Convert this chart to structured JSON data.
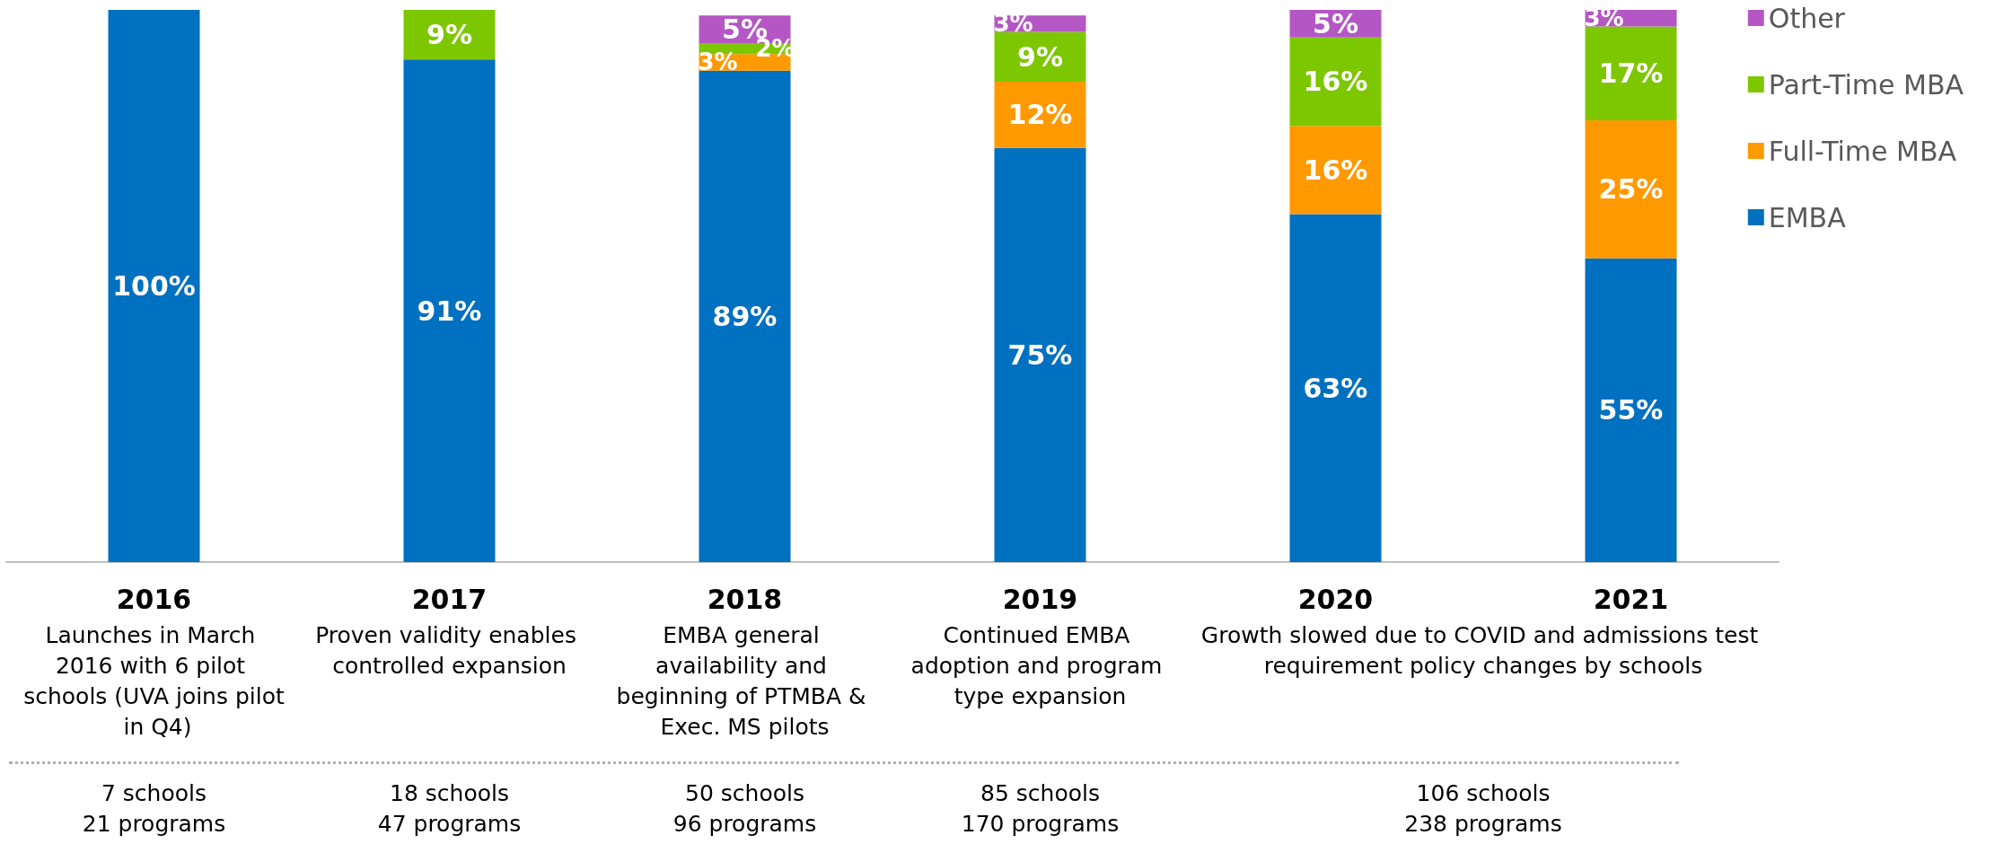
{
  "chart_data": {
    "type": "bar",
    "stacked": true,
    "categories": [
      "2016",
      "2017",
      "2018",
      "2019",
      "2020",
      "2021"
    ],
    "ylim": [
      0,
      100
    ],
    "legend": "top right",
    "grid": false,
    "series": [
      {
        "name": "EMBA",
        "color": "#0070c0",
        "values": [
          100,
          91,
          89,
          75,
          63,
          55
        ],
        "value_labels": [
          "100%",
          "91%",
          "89%",
          "75%",
          "63%",
          "55%"
        ]
      },
      {
        "name": "Full-Time MBA",
        "color": "#ff9900",
        "values": [
          null,
          null,
          3,
          12,
          16,
          25
        ],
        "value_labels": [
          null,
          null,
          "3%",
          "12%",
          "16%",
          "25%"
        ]
      },
      {
        "name": "Part-Time MBA",
        "color": "#7dc700",
        "values": [
          null,
          9,
          2,
          9,
          16,
          17
        ],
        "value_labels": [
          null,
          "9%",
          "2%",
          "9%",
          "16%",
          "17%"
        ]
      },
      {
        "name": "Other",
        "color": "#b556c5",
        "values": [
          null,
          null,
          5,
          3,
          5,
          3
        ],
        "value_labels": [
          null,
          null,
          "5%",
          "3%",
          "5%",
          "3%"
        ]
      }
    ],
    "annotations": [
      "Launches in March 2016 with 6 pilot schools (UVA joins pilot in Q4)",
      "Proven validity enables controlled expansion",
      "EMBA general availability and beginning of PTMBA & Exec. MS pilots",
      "Continued EMBA adoption and program type expansion",
      "Growth slowed due to COVID and admissions test requirement policy changes by schools",
      "7 schools\n21 programs",
      "18 schools\n47 programs",
      "50 schools\n96 programs",
      "85 schools\n170 programs",
      "106 schools\n238 programs"
    ]
  }
}
